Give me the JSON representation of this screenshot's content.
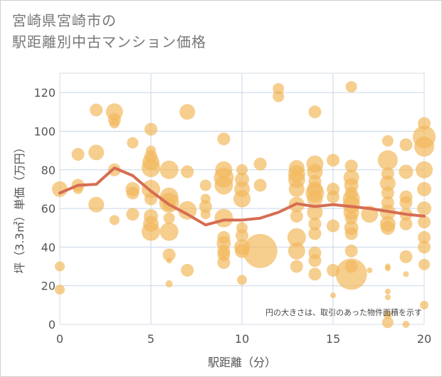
{
  "title": {
    "line1": "宮崎県宮崎市の",
    "line2": "駅距離別中古マンション価格"
  },
  "colors": {
    "bubble": "#f2b95e",
    "line": "#d66d52",
    "grid": "#c9d7e6",
    "axis": "#555555"
  },
  "chart_data": {
    "type": "scatter",
    "xlabel": "駅距離（分）",
    "ylabel": "坪（3.3㎡）単価（万円）",
    "xlim": [
      0,
      20
    ],
    "ylim": [
      0,
      130
    ],
    "xticks": [
      0,
      5,
      10,
      15,
      20
    ],
    "yticks": [
      0,
      20,
      40,
      60,
      80,
      100,
      120
    ],
    "grid": true,
    "annotation": "円の大きさは、取引のあった物件面積を示す",
    "series": [
      {
        "kind": "bubble",
        "points": [
          {
            "x": 0,
            "y": 70,
            "r": 11
          },
          {
            "x": 0,
            "y": 30,
            "r": 7
          },
          {
            "x": 0,
            "y": 18,
            "r": 7
          },
          {
            "x": 1,
            "y": 88,
            "r": 9
          },
          {
            "x": 1,
            "y": 72,
            "r": 9
          },
          {
            "x": 1,
            "y": 70,
            "r": 7
          },
          {
            "x": 2,
            "y": 111,
            "r": 9
          },
          {
            "x": 2,
            "y": 89,
            "r": 11
          },
          {
            "x": 2,
            "y": 62,
            "r": 11
          },
          {
            "x": 3,
            "y": 110,
            "r": 12
          },
          {
            "x": 3,
            "y": 106,
            "r": 9
          },
          {
            "x": 3,
            "y": 104,
            "r": 7
          },
          {
            "x": 3,
            "y": 80,
            "r": 9
          },
          {
            "x": 3,
            "y": 54,
            "r": 7
          },
          {
            "x": 4,
            "y": 94,
            "r": 8
          },
          {
            "x": 4,
            "y": 70,
            "r": 10
          },
          {
            "x": 4,
            "y": 68,
            "r": 9
          },
          {
            "x": 4,
            "y": 57,
            "r": 9
          },
          {
            "x": 5,
            "y": 101,
            "r": 9
          },
          {
            "x": 5,
            "y": 90,
            "r": 7
          },
          {
            "x": 5,
            "y": 87,
            "r": 9
          },
          {
            "x": 5,
            "y": 84,
            "r": 12
          },
          {
            "x": 5,
            "y": 81,
            "r": 13
          },
          {
            "x": 5,
            "y": 70,
            "r": 13
          },
          {
            "x": 5,
            "y": 65,
            "r": 9
          },
          {
            "x": 5,
            "y": 56,
            "r": 10
          },
          {
            "x": 5,
            "y": 52,
            "r": 11
          },
          {
            "x": 5,
            "y": 48,
            "r": 13
          },
          {
            "x": 6,
            "y": 80,
            "r": 13
          },
          {
            "x": 6,
            "y": 66,
            "r": 13
          },
          {
            "x": 6,
            "y": 63,
            "r": 14
          },
          {
            "x": 6,
            "y": 62,
            "r": 9
          },
          {
            "x": 6,
            "y": 55,
            "r": 8
          },
          {
            "x": 6,
            "y": 48,
            "r": 13
          },
          {
            "x": 6,
            "y": 36,
            "r": 9
          },
          {
            "x": 6,
            "y": 33,
            "r": 4
          },
          {
            "x": 6,
            "y": 21,
            "r": 5
          },
          {
            "x": 7,
            "y": 110,
            "r": 11
          },
          {
            "x": 7,
            "y": 79,
            "r": 9
          },
          {
            "x": 7,
            "y": 59,
            "r": 13
          },
          {
            "x": 7,
            "y": 28,
            "r": 9
          },
          {
            "x": 8,
            "y": 72,
            "r": 8
          },
          {
            "x": 8,
            "y": 65,
            "r": 7
          },
          {
            "x": 8,
            "y": 61,
            "r": 9
          },
          {
            "x": 8,
            "y": 57,
            "r": 7
          },
          {
            "x": 9,
            "y": 96,
            "r": 9
          },
          {
            "x": 9,
            "y": 80,
            "r": 12
          },
          {
            "x": 9,
            "y": 76,
            "r": 14
          },
          {
            "x": 9,
            "y": 72,
            "r": 13
          },
          {
            "x": 9,
            "y": 55,
            "r": 13
          },
          {
            "x": 9,
            "y": 45,
            "r": 9
          },
          {
            "x": 9,
            "y": 42,
            "r": 10
          },
          {
            "x": 9,
            "y": 38,
            "r": 9
          },
          {
            "x": 9,
            "y": 36,
            "r": 9
          },
          {
            "x": 9,
            "y": 32,
            "r": 9
          },
          {
            "x": 10,
            "y": 80,
            "r": 8
          },
          {
            "x": 10,
            "y": 75,
            "r": 10
          },
          {
            "x": 10,
            "y": 70,
            "r": 11
          },
          {
            "x": 10,
            "y": 65,
            "r": 12
          },
          {
            "x": 10,
            "y": 50,
            "r": 8
          },
          {
            "x": 10,
            "y": 46,
            "r": 9
          },
          {
            "x": 10,
            "y": 40,
            "r": 11
          },
          {
            "x": 10,
            "y": 38,
            "r": 10
          },
          {
            "x": 10,
            "y": 23,
            "r": 7
          },
          {
            "x": 11,
            "y": 83,
            "r": 9
          },
          {
            "x": 11,
            "y": 72,
            "r": 9
          },
          {
            "x": 11,
            "y": 38,
            "r": 24
          },
          {
            "x": 12,
            "y": 122,
            "r": 8
          },
          {
            "x": 12,
            "y": 118,
            "r": 8
          },
          {
            "x": 13,
            "y": 81,
            "r": 11
          },
          {
            "x": 13,
            "y": 78,
            "r": 12
          },
          {
            "x": 13,
            "y": 75,
            "r": 12
          },
          {
            "x": 13,
            "y": 70,
            "r": 11
          },
          {
            "x": 13,
            "y": 62,
            "r": 11
          },
          {
            "x": 13,
            "y": 56,
            "r": 9
          },
          {
            "x": 13,
            "y": 45,
            "r": 13
          },
          {
            "x": 13,
            "y": 38,
            "r": 12
          },
          {
            "x": 13,
            "y": 30,
            "r": 9
          },
          {
            "x": 14,
            "y": 110,
            "r": 9
          },
          {
            "x": 14,
            "y": 83,
            "r": 12
          },
          {
            "x": 14,
            "y": 79,
            "r": 11
          },
          {
            "x": 14,
            "y": 74,
            "r": 9
          },
          {
            "x": 14,
            "y": 70,
            "r": 11
          },
          {
            "x": 14,
            "y": 68,
            "r": 13
          },
          {
            "x": 14,
            "y": 65,
            "r": 11
          },
          {
            "x": 14,
            "y": 58,
            "r": 11
          },
          {
            "x": 14,
            "y": 52,
            "r": 9
          },
          {
            "x": 14,
            "y": 47,
            "r": 9
          },
          {
            "x": 14,
            "y": 37,
            "r": 9
          },
          {
            "x": 14,
            "y": 33,
            "r": 9
          },
          {
            "x": 14,
            "y": 26,
            "r": 9
          },
          {
            "x": 15,
            "y": 85,
            "r": 9
          },
          {
            "x": 15,
            "y": 70,
            "r": 9
          },
          {
            "x": 15,
            "y": 66,
            "r": 9
          },
          {
            "x": 15,
            "y": 51,
            "r": 9
          },
          {
            "x": 15,
            "y": 28,
            "r": 9
          },
          {
            "x": 15,
            "y": 15,
            "r": 4
          },
          {
            "x": 16,
            "y": 123,
            "r": 8
          },
          {
            "x": 16,
            "y": 82,
            "r": 9
          },
          {
            "x": 16,
            "y": 76,
            "r": 11
          },
          {
            "x": 16,
            "y": 72,
            "r": 10
          },
          {
            "x": 16,
            "y": 68,
            "r": 9
          },
          {
            "x": 16,
            "y": 65,
            "r": 12
          },
          {
            "x": 16,
            "y": 62,
            "r": 12
          },
          {
            "x": 16,
            "y": 58,
            "r": 11
          },
          {
            "x": 16,
            "y": 55,
            "r": 9
          },
          {
            "x": 16,
            "y": 50,
            "r": 10
          },
          {
            "x": 16,
            "y": 47,
            "r": 9
          },
          {
            "x": 16,
            "y": 38,
            "r": 9
          },
          {
            "x": 16,
            "y": 30,
            "r": 9
          },
          {
            "x": 16,
            "y": 26,
            "r": 22
          },
          {
            "x": 17,
            "y": 57,
            "r": 12
          },
          {
            "x": 17,
            "y": 28,
            "r": 4
          },
          {
            "x": 18,
            "y": 95,
            "r": 8
          },
          {
            "x": 18,
            "y": 85,
            "r": 14
          },
          {
            "x": 18,
            "y": 78,
            "r": 9
          },
          {
            "x": 18,
            "y": 73,
            "r": 11
          },
          {
            "x": 18,
            "y": 68,
            "r": 9
          },
          {
            "x": 18,
            "y": 63,
            "r": 9
          },
          {
            "x": 18,
            "y": 58,
            "r": 11
          },
          {
            "x": 18,
            "y": 52,
            "r": 11
          },
          {
            "x": 18,
            "y": 50,
            "r": 10
          },
          {
            "x": 18,
            "y": 30,
            "r": 4
          },
          {
            "x": 18,
            "y": 29,
            "r": 4
          },
          {
            "x": 18,
            "y": 17,
            "r": 4
          },
          {
            "x": 18,
            "y": 14,
            "r": 4
          },
          {
            "x": 18,
            "y": 5,
            "r": 6
          },
          {
            "x": 18,
            "y": 1,
            "r": 8
          },
          {
            "x": 19,
            "y": 93,
            "r": 9
          },
          {
            "x": 19,
            "y": 79,
            "r": 10
          },
          {
            "x": 19,
            "y": 66,
            "r": 9
          },
          {
            "x": 19,
            "y": 63,
            "r": 9
          },
          {
            "x": 19,
            "y": 57,
            "r": 9
          },
          {
            "x": 19,
            "y": 52,
            "r": 9
          },
          {
            "x": 19,
            "y": 35,
            "r": 9
          },
          {
            "x": 19,
            "y": 26,
            "r": 4
          },
          {
            "x": 19,
            "y": 0,
            "r": 5
          },
          {
            "x": 20,
            "y": 104,
            "r": 9
          },
          {
            "x": 20,
            "y": 97,
            "r": 16
          },
          {
            "x": 20,
            "y": 92,
            "r": 14
          },
          {
            "x": 20,
            "y": 80,
            "r": 12
          },
          {
            "x": 20,
            "y": 70,
            "r": 10
          },
          {
            "x": 20,
            "y": 60,
            "r": 10
          },
          {
            "x": 20,
            "y": 53,
            "r": 9
          },
          {
            "x": 20,
            "y": 45,
            "r": 9
          },
          {
            "x": 20,
            "y": 40,
            "r": 9
          },
          {
            "x": 20,
            "y": 31,
            "r": 8
          },
          {
            "x": 20,
            "y": 10,
            "r": 6
          }
        ]
      },
      {
        "kind": "line",
        "x": [
          0,
          1,
          2,
          3,
          4,
          5,
          6,
          7,
          8,
          9,
          10,
          11,
          12,
          13,
          14,
          15,
          16,
          17,
          18,
          19,
          20
        ],
        "y": [
          68,
          72,
          72.5,
          81,
          77,
          69,
          62,
          57,
          51.5,
          54,
          54,
          55,
          58,
          62.5,
          61,
          62,
          61,
          60,
          58.5,
          57,
          56
        ]
      }
    ]
  }
}
